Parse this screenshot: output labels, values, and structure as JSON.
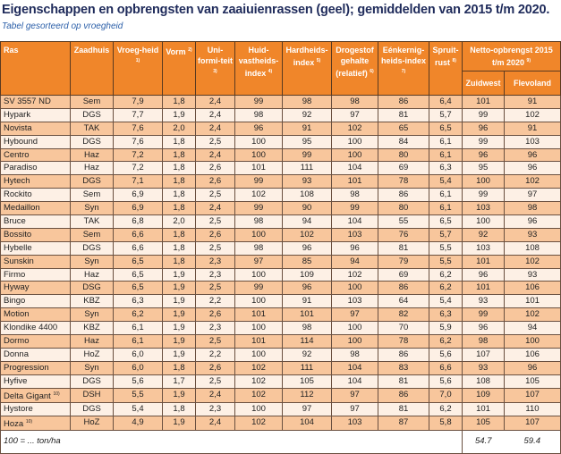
{
  "title": "Eigenschappen en opbrengsten van zaaiuienrassen (geel); gemiddelden van 2015 t/m 2020.",
  "subtitle": "Tabel gesorteerd op vroegheid",
  "colors": {
    "header": "#f0862a",
    "row_dark": "#f8c69c",
    "row_light": "#fdf0e5",
    "title": "#1f2b5b"
  },
  "headers": {
    "ras": "Ras",
    "zaadhuis": "Zaadhuis",
    "vroegheid": "Vroeg-heid",
    "vroegheid_note": "1)",
    "vorm": "Vorm",
    "vorm_note": "2)",
    "uniformiteit": "Uni-formi-teit",
    "uniformiteit_note": "3)",
    "huidvastheid": "Huid-vastheids-index",
    "huidvastheid_note": "4)",
    "hardheid": "Hardheids-index",
    "hardheid_note": "5)",
    "drogestof": "Drogestof gehalte (relatief)",
    "drogestof_note": "6)",
    "eenkernig": "Eénkernig-heids-index",
    "eenkernig_note": "7)",
    "spruitrust": "Spruit-rust",
    "spruitrust_note": "8)",
    "opbrengst": "Netto-opbrengst 2015 t/m 2020",
    "opbrengst_note": "9)",
    "zuidwest": "Zuidwest",
    "flevoland": "Flevoland"
  },
  "rows": [
    [
      "SV 3557 ND",
      "",
      "Sem",
      "7,9",
      "1,8",
      "2,4",
      "99",
      "98",
      "98",
      "86",
      "6,4",
      "101",
      "91"
    ],
    [
      "Hypark",
      "",
      "DGS",
      "7,7",
      "1,9",
      "2,4",
      "98",
      "92",
      "97",
      "81",
      "5,7",
      "99",
      "102"
    ],
    [
      "Novista",
      "",
      "TAK",
      "7,6",
      "2,0",
      "2,4",
      "96",
      "91",
      "102",
      "65",
      "6,5",
      "96",
      "91"
    ],
    [
      "Hybound",
      "",
      "DGS",
      "7,6",
      "1,8",
      "2,5",
      "100",
      "95",
      "100",
      "84",
      "6,1",
      "99",
      "103"
    ],
    [
      "Centro",
      "",
      "Haz",
      "7,2",
      "1,8",
      "2,4",
      "100",
      "99",
      "100",
      "80",
      "6,1",
      "96",
      "96"
    ],
    [
      "Paradiso",
      "",
      "Haz",
      "7,2",
      "1,8",
      "2,6",
      "101",
      "111",
      "104",
      "69",
      "6,3",
      "95",
      "96"
    ],
    [
      "Hytech",
      "",
      "DGS",
      "7,1",
      "1,8",
      "2,6",
      "99",
      "93",
      "101",
      "78",
      "5,4",
      "100",
      "102"
    ],
    [
      "Rockito",
      "",
      "Sem",
      "6,9",
      "1,8",
      "2,5",
      "102",
      "108",
      "98",
      "86",
      "6,1",
      "99",
      "97"
    ],
    [
      "Medaillon",
      "",
      "Syn",
      "6,9",
      "1,8",
      "2,4",
      "99",
      "90",
      "99",
      "80",
      "6,1",
      "103",
      "98"
    ],
    [
      "Bruce",
      "",
      "TAK",
      "6,8",
      "2,0",
      "2,5",
      "98",
      "94",
      "104",
      "55",
      "6,5",
      "100",
      "96"
    ],
    [
      "Bossito",
      "",
      "Sem",
      "6,6",
      "1,8",
      "2,6",
      "100",
      "102",
      "103",
      "76",
      "5,7",
      "92",
      "93"
    ],
    [
      "Hybelle",
      "",
      "DGS",
      "6,6",
      "1,8",
      "2,5",
      "98",
      "96",
      "96",
      "81",
      "5,5",
      "103",
      "108"
    ],
    [
      "Sunskin",
      "",
      "Syn",
      "6,5",
      "1,8",
      "2,3",
      "97",
      "85",
      "94",
      "79",
      "5,5",
      "101",
      "102"
    ],
    [
      "Firmo",
      "",
      "Haz",
      "6,5",
      "1,9",
      "2,3",
      "100",
      "109",
      "102",
      "69",
      "6,2",
      "96",
      "93"
    ],
    [
      "Hyway",
      "",
      "DSG",
      "6,5",
      "1,9",
      "2,5",
      "99",
      "96",
      "100",
      "86",
      "6,2",
      "101",
      "106"
    ],
    [
      "Bingo",
      "",
      "KBZ",
      "6,3",
      "1,9",
      "2,2",
      "100",
      "91",
      "103",
      "64",
      "5,4",
      "93",
      "101"
    ],
    [
      "Motion",
      "",
      "Syn",
      "6,2",
      "1,9",
      "2,6",
      "101",
      "101",
      "97",
      "82",
      "6,3",
      "99",
      "102"
    ],
    [
      "Klondike 4400",
      "",
      "KBZ",
      "6,1",
      "1,9",
      "2,3",
      "100",
      "98",
      "100",
      "70",
      "5,9",
      "96",
      "94"
    ],
    [
      "Dormo",
      "",
      "Haz",
      "6,1",
      "1,9",
      "2,5",
      "101",
      "114",
      "100",
      "78",
      "6,2",
      "98",
      "100"
    ],
    [
      "Donna",
      "",
      "HoZ",
      "6,0",
      "1,9",
      "2,2",
      "100",
      "92",
      "98",
      "86",
      "5,6",
      "107",
      "106"
    ],
    [
      "Progression",
      "",
      "Syn",
      "6,0",
      "1,8",
      "2,6",
      "102",
      "111",
      "104",
      "83",
      "6,6",
      "93",
      "96"
    ],
    [
      "Hyfive",
      "",
      "DGS",
      "5,6",
      "1,7",
      "2,5",
      "102",
      "105",
      "104",
      "81",
      "5,6",
      "108",
      "105"
    ],
    [
      "Delta Gigant",
      "10)",
      "DSH",
      "5,5",
      "1,9",
      "2,4",
      "102",
      "112",
      "97",
      "86",
      "7,0",
      "109",
      "107"
    ],
    [
      "Hystore",
      "",
      "DGS",
      "5,4",
      "1,8",
      "2,3",
      "100",
      "97",
      "97",
      "81",
      "6,2",
      "101",
      "110"
    ],
    [
      "Hoza",
      "10)",
      "HoZ",
      "4,9",
      "1,9",
      "2,4",
      "102",
      "104",
      "103",
      "87",
      "5,8",
      "105",
      "107"
    ]
  ],
  "footer": {
    "label": "100 = ... ton/ha",
    "zuidwest": "54.7",
    "flevoland": "59.4"
  }
}
